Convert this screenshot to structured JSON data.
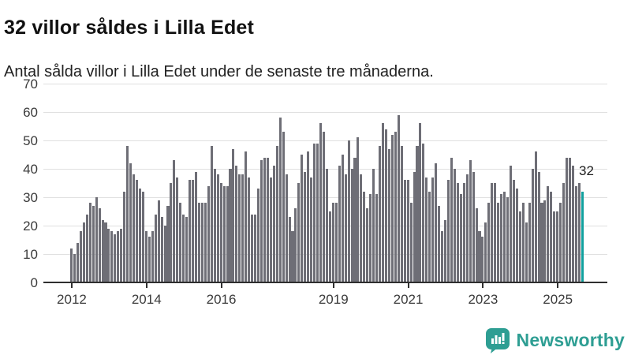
{
  "header": {
    "title": "32 villor såldes i Lilla Edet",
    "subtitle": "Antal sålda villor i Lilla Edet under de senaste tre månaderna."
  },
  "branding": {
    "logo_text": "Newsworthy",
    "logo_color": "#2e9e93",
    "logo_icon": "speech-bubble-bar-chart-icon"
  },
  "chart_data": {
    "type": "bar",
    "title": "32 villor såldes i Lilla Edet",
    "subtitle": "Antal sålda villor i Lilla Edet under de senaste tre månaderna.",
    "xlabel": "",
    "ylabel": "",
    "ylim": [
      0,
      70
    ],
    "yticks": [
      0,
      10,
      20,
      30,
      40,
      50,
      60,
      70
    ],
    "x_unit": "month",
    "x_start_label": "2012",
    "x_tick_labels": [
      "2012",
      "2014",
      "2016",
      "2019",
      "2021",
      "2023",
      "2025"
    ],
    "grid": true,
    "bar_color": "#6e6e76",
    "highlight_color": "#11a09e",
    "annotation": {
      "text": "32",
      "applies_to": "last-bar"
    },
    "values": [
      12,
      10,
      14,
      18,
      21,
      24,
      28,
      27,
      30,
      26,
      22,
      21,
      19,
      18,
      17,
      18,
      19,
      32,
      48,
      42,
      38,
      36,
      33,
      32,
      18,
      16,
      18,
      24,
      29,
      23,
      20,
      27,
      35,
      43,
      37,
      28,
      24,
      23,
      36,
      36,
      39,
      28,
      28,
      28,
      34,
      48,
      40,
      38,
      35,
      34,
      34,
      40,
      47,
      41,
      38,
      38,
      46,
      37,
      24,
      24,
      33,
      43,
      44,
      44,
      37,
      41,
      48,
      58,
      53,
      38,
      23,
      18,
      26,
      35,
      45,
      39,
      46,
      37,
      49,
      49,
      56,
      53,
      40,
      25,
      28,
      28,
      41,
      45,
      38,
      50,
      40,
      44,
      51,
      38,
      32,
      26,
      31,
      40,
      31,
      48,
      56,
      54,
      47,
      52,
      53,
      59,
      48,
      36,
      36,
      28,
      39,
      48,
      56,
      49,
      37,
      32,
      37,
      42,
      27,
      18,
      22,
      36,
      44,
      40,
      35,
      31,
      35,
      38,
      43,
      39,
      26,
      18,
      16,
      21,
      28,
      35,
      35,
      28,
      31,
      32,
      30,
      41,
      36,
      33,
      25,
      28,
      21,
      28,
      40,
      46,
      39,
      28,
      29,
      34,
      32,
      25,
      25,
      28,
      35,
      44,
      44,
      41,
      34,
      35,
      32
    ]
  }
}
